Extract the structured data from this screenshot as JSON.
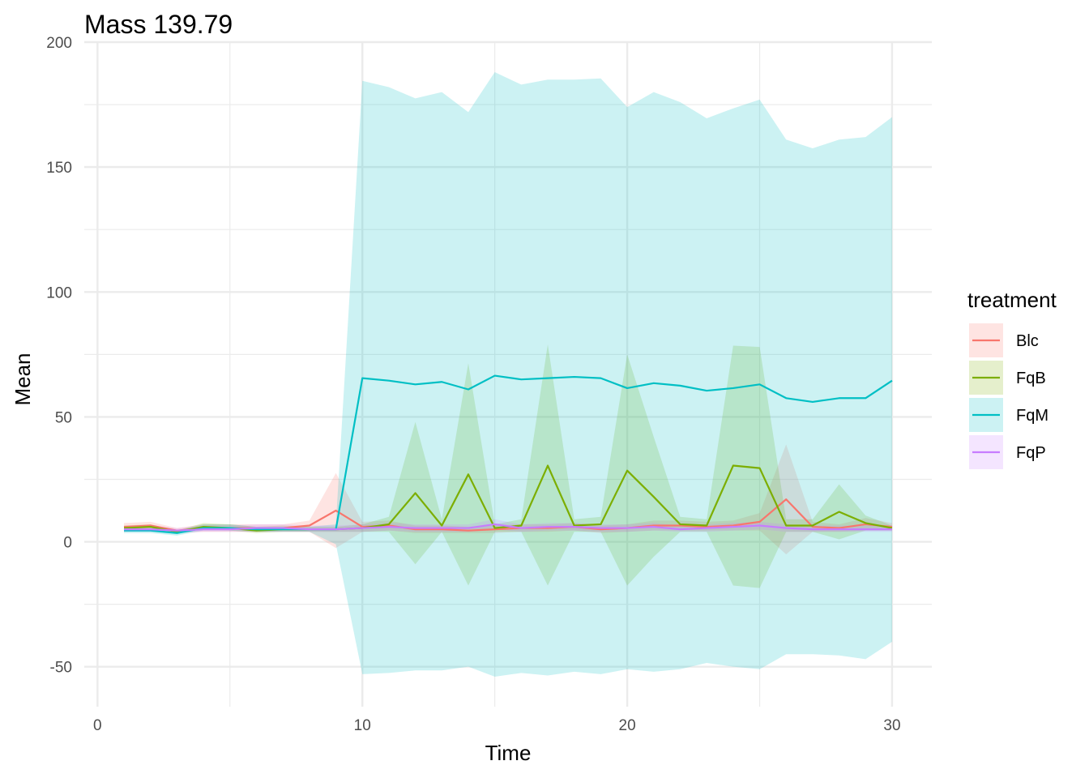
{
  "chart_data": {
    "type": "line",
    "title": "Mass 139.79",
    "xlabel": "Time",
    "ylabel": "Mean",
    "xlim": [
      -0.5,
      31.5
    ],
    "ylim": [
      -66,
      200
    ],
    "x_ticks": [
      0,
      10,
      20,
      30
    ],
    "y_ticks": [
      -50,
      0,
      50,
      100,
      150,
      200
    ],
    "grid": true,
    "legend": {
      "title": "treatment",
      "position": "right"
    },
    "x": [
      1,
      2,
      3,
      4,
      5,
      6,
      7,
      8,
      9,
      10,
      11,
      12,
      13,
      14,
      15,
      16,
      17,
      18,
      19,
      20,
      21,
      22,
      23,
      24,
      25,
      26,
      27,
      28,
      29,
      30
    ],
    "series": [
      {
        "name": "Blc",
        "color": "#F8766D",
        "mean": [
          6,
          6.5,
          4.5,
          5.5,
          5.5,
          5.5,
          5.5,
          6.5,
          12.5,
          6,
          6.5,
          5,
          5,
          4.5,
          5,
          5.5,
          5.5,
          6,
          5,
          5.5,
          6.5,
          6.5,
          6,
          6.5,
          8,
          17,
          6,
          5.5,
          7,
          6
        ],
        "lower": [
          4,
          4.5,
          3.5,
          4,
          4,
          4,
          4,
          4,
          -2.5,
          4,
          4.5,
          3.5,
          3.5,
          3.5,
          3.5,
          4,
          4,
          4.5,
          3.5,
          4,
          4.5,
          4.5,
          4.5,
          4.5,
          4.5,
          -5,
          4,
          4,
          4.5,
          4.5
        ],
        "upper": [
          7.5,
          8,
          5.5,
          7,
          7,
          7,
          7,
          8.5,
          27.5,
          8,
          8.5,
          6.5,
          6.5,
          6,
          6.5,
          7,
          7,
          7.5,
          6.5,
          7,
          8.5,
          8.5,
          8,
          8.5,
          11.5,
          39,
          8,
          7,
          9.5,
          7.5
        ]
      },
      {
        "name": "FqB",
        "color": "#7CAE00",
        "mean": [
          5.5,
          6,
          4,
          6,
          5.5,
          4.5,
          5,
          5,
          5,
          5.5,
          7,
          19.5,
          6.5,
          27,
          5.5,
          6.5,
          30.5,
          6.5,
          7,
          28.5,
          18,
          7,
          6.5,
          30.5,
          29.5,
          6.5,
          6.5,
          12,
          7.5,
          5.5
        ],
        "lower": [
          4.5,
          5,
          3.5,
          5,
          4.5,
          3.5,
          4,
          4,
          4,
          4,
          4,
          -9,
          4,
          -17.5,
          4,
          4,
          -17.5,
          4,
          4,
          -17.5,
          -6,
          4,
          4,
          -17.5,
          -18.5,
          4,
          4,
          1,
          4.5,
          4.5
        ],
        "upper": [
          6.5,
          7,
          4.5,
          7.5,
          7,
          6,
          6.5,
          6,
          6,
          7,
          10,
          48,
          9,
          71.5,
          7,
          9,
          79,
          9,
          10,
          75,
          42,
          10,
          9,
          78.5,
          78,
          9,
          9,
          23,
          10.5,
          6.5
        ]
      },
      {
        "name": "FqM",
        "color": "#00BFC4",
        "mean": [
          4.5,
          4.5,
          3.5,
          5.5,
          5.5,
          5,
          5,
          5,
          5,
          65.5,
          64.5,
          63,
          64,
          61,
          66.5,
          65,
          65.5,
          66,
          65.5,
          61.5,
          63.5,
          62.5,
          60.5,
          61.5,
          63,
          57.5,
          56,
          57.5,
          57.5,
          64.5
        ],
        "lower": [
          3.5,
          3.5,
          2.5,
          4.5,
          4.5,
          4,
          4,
          4,
          -1,
          -53,
          -52.5,
          -51.5,
          -51.5,
          -50,
          -54,
          -52.5,
          -53.5,
          -52,
          -53,
          -51,
          -52,
          -51,
          -48.5,
          -50,
          -51,
          -45,
          -45,
          -45.5,
          -47,
          -40
        ],
        "upper": [
          5.5,
          5.5,
          4.5,
          7,
          7,
          6,
          6,
          6,
          7,
          184.5,
          182,
          177.5,
          180,
          172,
          188,
          183,
          185,
          185,
          185.5,
          174,
          180,
          176,
          169.5,
          173.5,
          177,
          161,
          157.5,
          161,
          162,
          170
        ]
      },
      {
        "name": "FqP",
        "color": "#C77CFF",
        "mean": [
          5,
          5,
          4.5,
          5,
          5,
          5.5,
          5.5,
          5,
          5,
          5.5,
          6,
          5.5,
          5.5,
          5.5,
          7,
          5.5,
          6,
          6,
          5.5,
          5.5,
          6,
          5,
          5.5,
          6,
          6.5,
          5.5,
          5,
          5,
          5,
          5
        ],
        "lower": [
          4,
          4,
          3.5,
          4,
          4,
          4,
          4,
          4,
          4,
          4,
          4.5,
          4,
          4,
          4,
          5,
          4,
          4.5,
          4.5,
          4,
          4,
          4.5,
          4,
          4,
          4.5,
          5,
          4,
          4,
          4,
          4,
          4
        ],
        "upper": [
          6,
          6.5,
          5.5,
          6.5,
          6.5,
          7,
          7,
          6.5,
          6.5,
          7,
          7.5,
          7,
          7,
          7,
          9,
          7,
          7.5,
          7.5,
          7,
          7,
          7.5,
          6.5,
          7,
          7.5,
          8,
          7,
          6.5,
          6.5,
          6.5,
          6.5
        ]
      }
    ]
  }
}
